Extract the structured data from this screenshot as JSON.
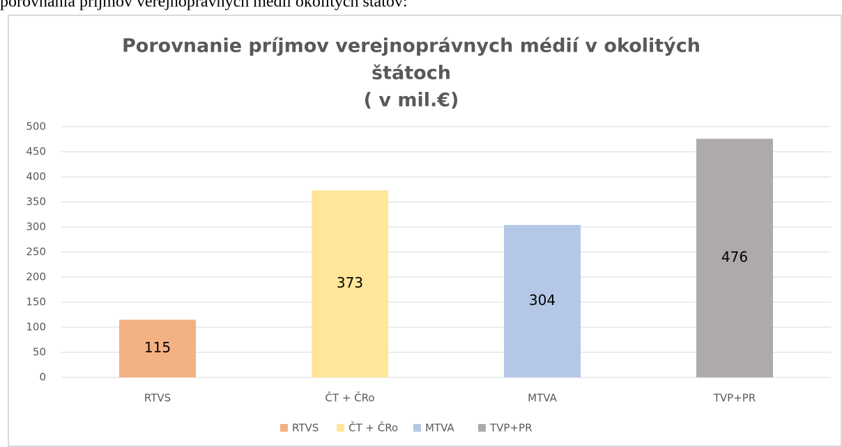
{
  "document_text": "porovnania príjmov verejnoprávnych médií okolitých štátov:",
  "chart_data": {
    "type": "bar",
    "title": [
      "Porovnanie príjmov verejnoprávnych médií v okolitých",
      "štátoch",
      "( v mil.€)"
    ],
    "categories": [
      "RTVS",
      "ČT + ČRo",
      "MTVA",
      "TVP+PR"
    ],
    "values": [
      115,
      373,
      304,
      476
    ],
    "colors": [
      "#f4b183",
      "#ffe699",
      "#b4c7e7",
      "#aeaaaa"
    ],
    "ylim": [
      0,
      500
    ],
    "yticks": [
      0,
      50,
      100,
      150,
      200,
      250,
      300,
      350,
      400,
      450,
      500
    ],
    "grid": true,
    "legend": "bottom"
  }
}
